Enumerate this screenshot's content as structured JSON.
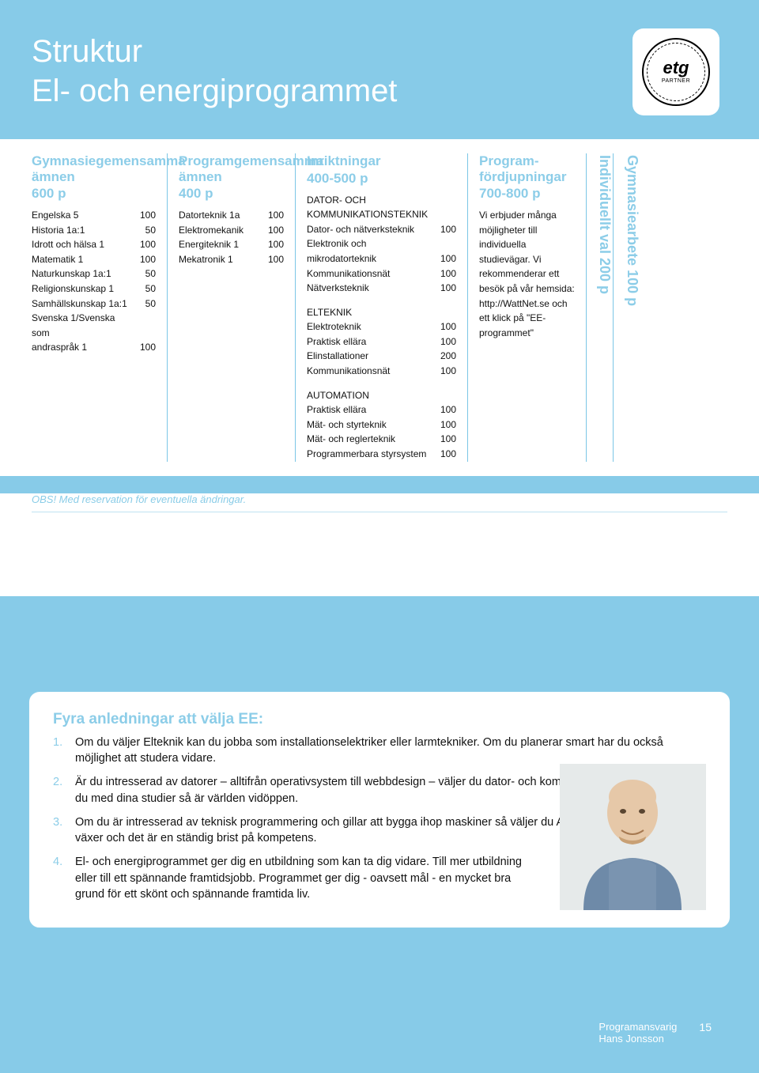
{
  "colors": {
    "page_bg": "#87cbe8",
    "accent": "#8ccde8",
    "white": "#ffffff",
    "text": "#111111",
    "rule": "#bfe3f1"
  },
  "header": {
    "title_line1": "Struktur",
    "title_line2": "El- och energiprogrammet",
    "logo": {
      "main": "etg",
      "sub": "PARTNER"
    }
  },
  "columns": {
    "col1": {
      "heading": "Gymnasiegemensamma ämnen",
      "points": "600 p",
      "rows": [
        {
          "label": "Engelska 5",
          "points": "100"
        },
        {
          "label": "Historia 1a:1",
          "points": "50"
        },
        {
          "label": "Idrott och hälsa 1",
          "points": "100"
        },
        {
          "label": "Matematik 1",
          "points": "100"
        },
        {
          "label": "Naturkunskap 1a:1",
          "points": "50"
        },
        {
          "label": "Religionskunskap 1",
          "points": "50"
        },
        {
          "label": "Samhällskunskap 1a:1",
          "points": "50"
        },
        {
          "label": "Svenska 1/Svenska som",
          "points": ""
        },
        {
          "label": "andraspråk 1",
          "points": "100"
        }
      ]
    },
    "col2": {
      "heading": "Programgemensamma ämnen",
      "points": "400 p",
      "rows": [
        {
          "label": "Datorteknik 1a",
          "points": "100"
        },
        {
          "label": "Elektromekanik",
          "points": "100"
        },
        {
          "label": "Energiteknik 1",
          "points": "100"
        },
        {
          "label": "Mekatronik 1",
          "points": "100"
        }
      ]
    },
    "col3": {
      "heading": "Inriktningar",
      "points": "400-500 p",
      "group1_title1": "DATOR- OCH",
      "group1_title2": "KOMMUNIKATIONSTEKNIK",
      "group1_rows": [
        {
          "label": "Dator- och nätverksteknik",
          "points": "100"
        },
        {
          "label": "Elektronik och",
          "points": ""
        },
        {
          "label": "mikrodatorteknik",
          "points": "100"
        },
        {
          "label": "Kommunikationsnät",
          "points": "100"
        },
        {
          "label": "Nätverksteknik",
          "points": "100"
        }
      ],
      "group2_title": "ELTEKNIK",
      "group2_rows": [
        {
          "label": "Elektroteknik",
          "points": "100"
        },
        {
          "label": "Praktisk ellära",
          "points": "100"
        },
        {
          "label": "Elinstallationer",
          "points": "200"
        },
        {
          "label": "Kommunikationsnät",
          "points": "100"
        }
      ],
      "group3_title": "AUTOMATION",
      "group3_rows": [
        {
          "label": "Praktisk ellära",
          "points": "100"
        },
        {
          "label": "Mät- och styrteknik",
          "points": "100"
        },
        {
          "label": "Mät- och reglerteknik",
          "points": "100"
        },
        {
          "label": "Programmerbara styrsystem",
          "points": "100"
        }
      ]
    },
    "col4": {
      "heading": "Program-fördjupningar",
      "points": "700-800 p",
      "text": "Vi erbjuder många möjligheter till individuella studievägar. Vi rekommenderar ett besök på vår hemsida: http://WattNet.se och ett klick på \"EE-programmet\""
    },
    "vcol1": "Individuellt val 200 p",
    "vcol2": "Gymnasiearbete 100 p"
  },
  "obs_note": "OBS! Med reservation för eventuella ändringar.",
  "four_box": {
    "heading": "Fyra anledningar att välja EE:",
    "items": [
      {
        "n": "1.",
        "text": "Om du väljer Elteknik kan du jobba som installationselektriker eller larmtekniker. Om du planerar smart har du också möjlighet att studera vidare."
      },
      {
        "n": "2.",
        "text": "Är du intresserad av datorer – alltifrån operativsystem till webbdesign – väljer du dator- och kommunikationsteknik. Lyckas du med dina studier så är världen vidöppen."
      },
      {
        "n": "3.",
        "text": "Om du är intresserad av teknisk programmering och gillar att bygga ihop maskiner så väljer du Automation. Detta område växer och det är en ständig brist på kompetens."
      },
      {
        "n": "4.",
        "text": "El- och energiprogrammet ger dig en utbildning som kan ta dig vidare. Till mer utbildning eller till ett spännande framtidsjobb. Programmet ger dig - oavsett mål - en mycket bra grund för ett skönt och spännande framtida liv."
      }
    ]
  },
  "footer": {
    "role": "Programansvarig",
    "name": "Hans Jonsson",
    "page": "15"
  }
}
